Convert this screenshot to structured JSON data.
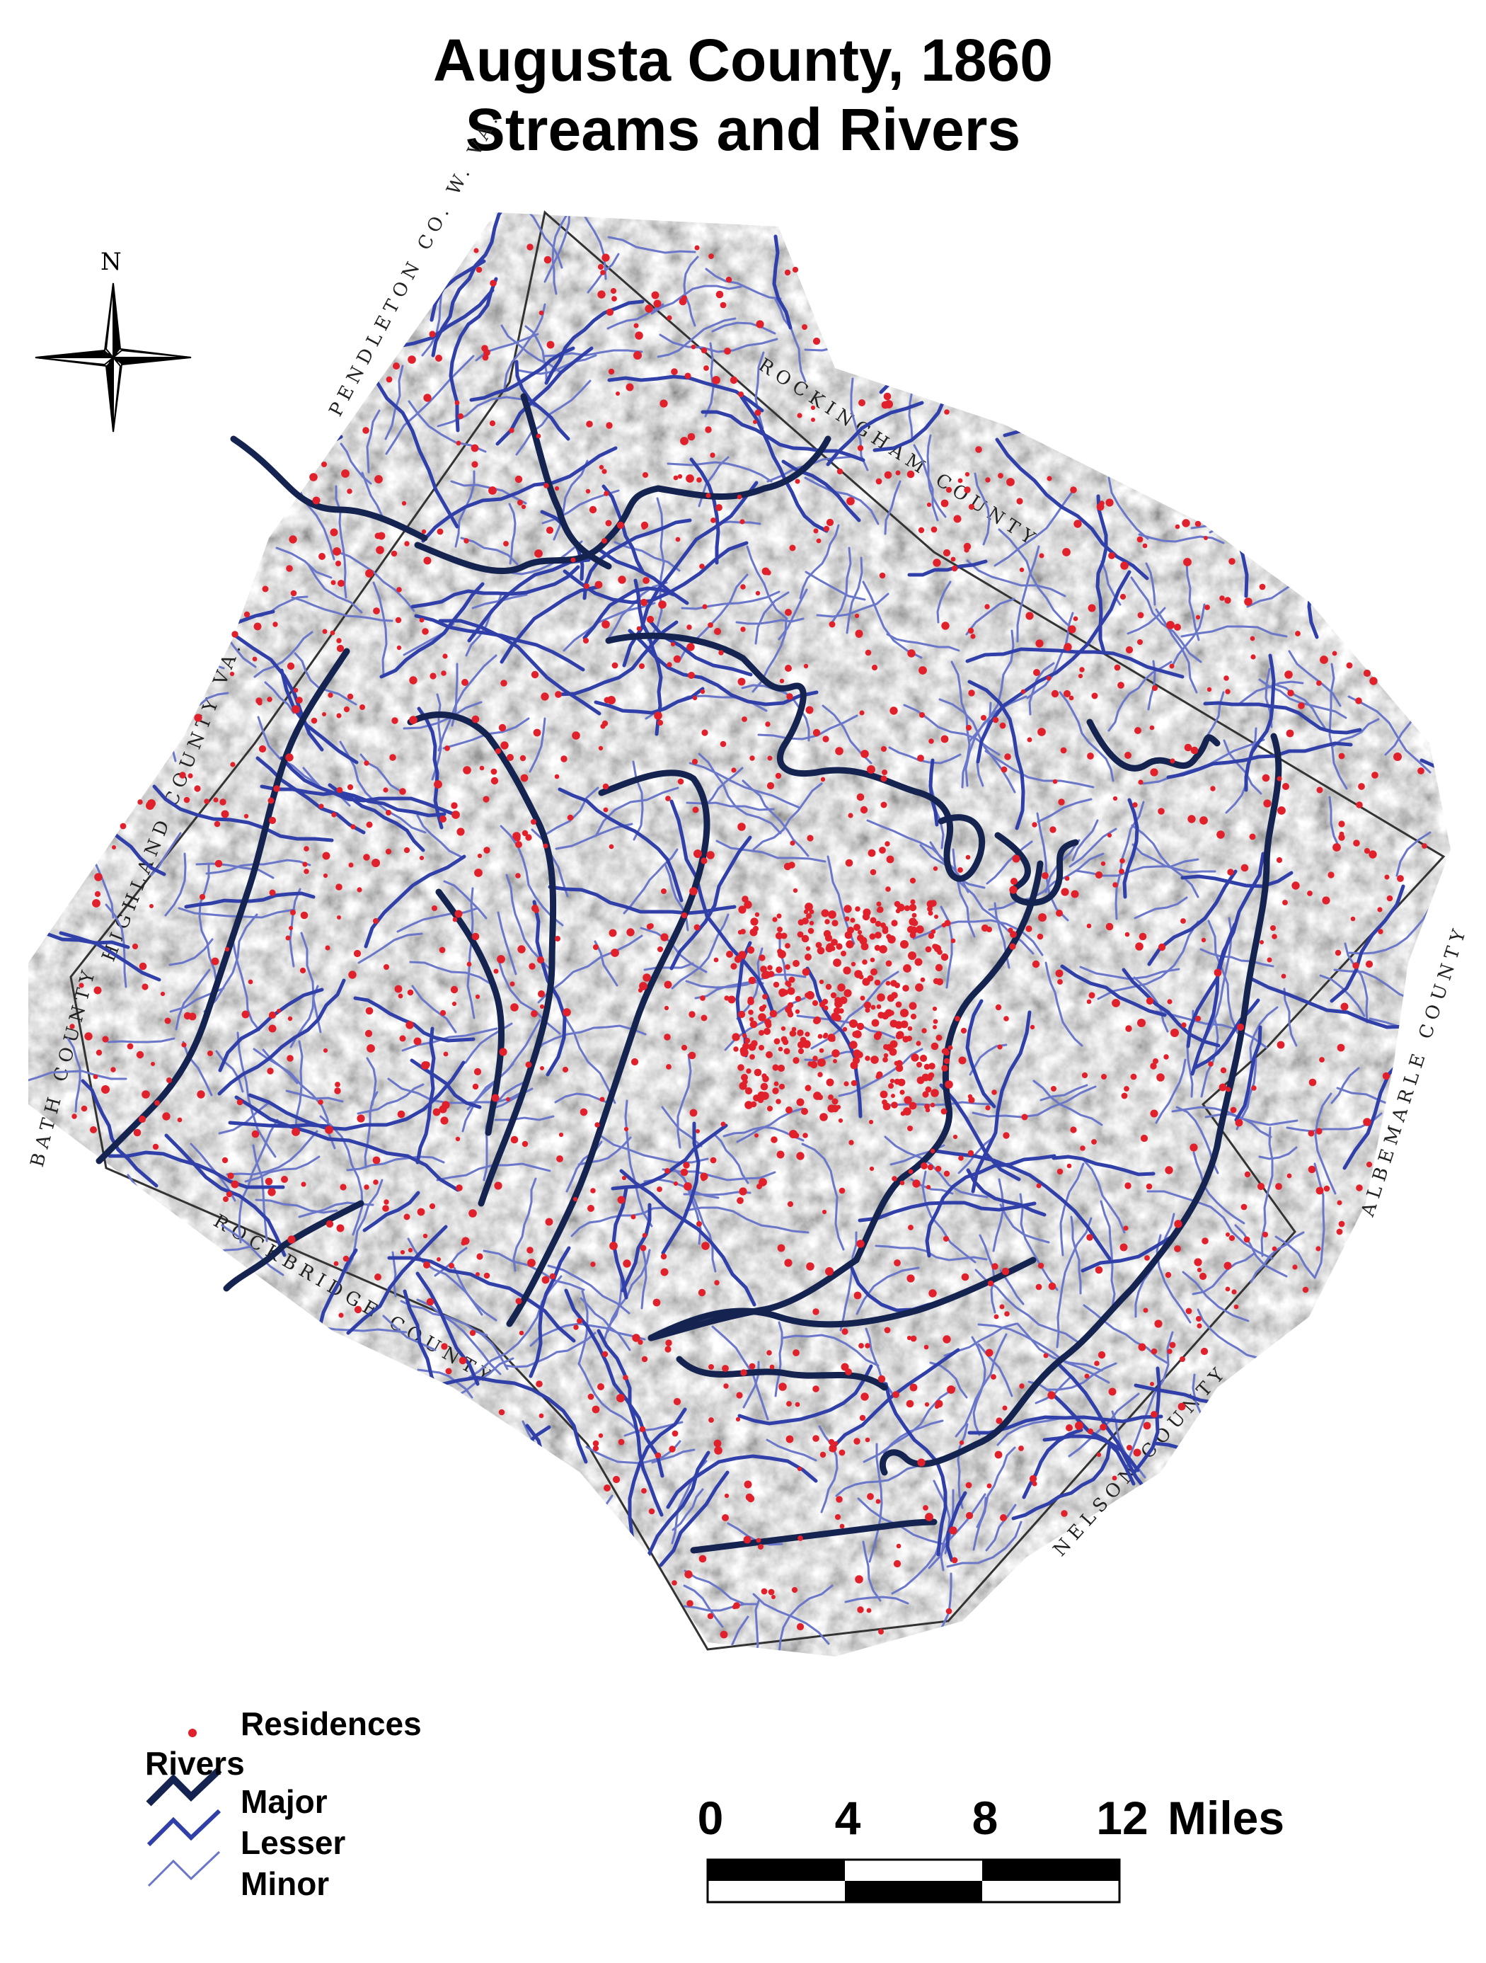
{
  "title": {
    "line1": "Augusta County, 1860",
    "line2": "Streams and Rivers"
  },
  "compass": {
    "north_label": "N",
    "icon": "compass-rose-icon"
  },
  "map": {
    "background": "historic-engraved-county-map",
    "neighbors": [
      {
        "id": "pendleton",
        "text": "PENDLETON CO. W. VA."
      },
      {
        "id": "rockingham",
        "text": "ROCKINGHAM COUNTY"
      },
      {
        "id": "highland",
        "text": "HIGHLAND COUNTY VA."
      },
      {
        "id": "bath",
        "text": "BATH COUNTY"
      },
      {
        "id": "albemarle",
        "text": "ALBEMARLE COUNTY"
      },
      {
        "id": "rockbridge",
        "text": "ROCKBRIDGE COUNTY"
      },
      {
        "id": "nelson",
        "text": "NELSON COUNTY"
      }
    ],
    "colors": {
      "major_river": "#14234f",
      "lesser_river": "#3040a8",
      "minor_river": "#6a76c8",
      "residence": "#e0202a",
      "relief": "#8c8c8c"
    }
  },
  "legend": {
    "residences": "Residences",
    "rivers_heading": "Rivers",
    "major": "Major",
    "lesser": "Lesser",
    "minor": "Minor"
  },
  "scale_bar": {
    "ticks": [
      "0",
      "4",
      "8",
      "12"
    ],
    "unit": "Miles"
  }
}
